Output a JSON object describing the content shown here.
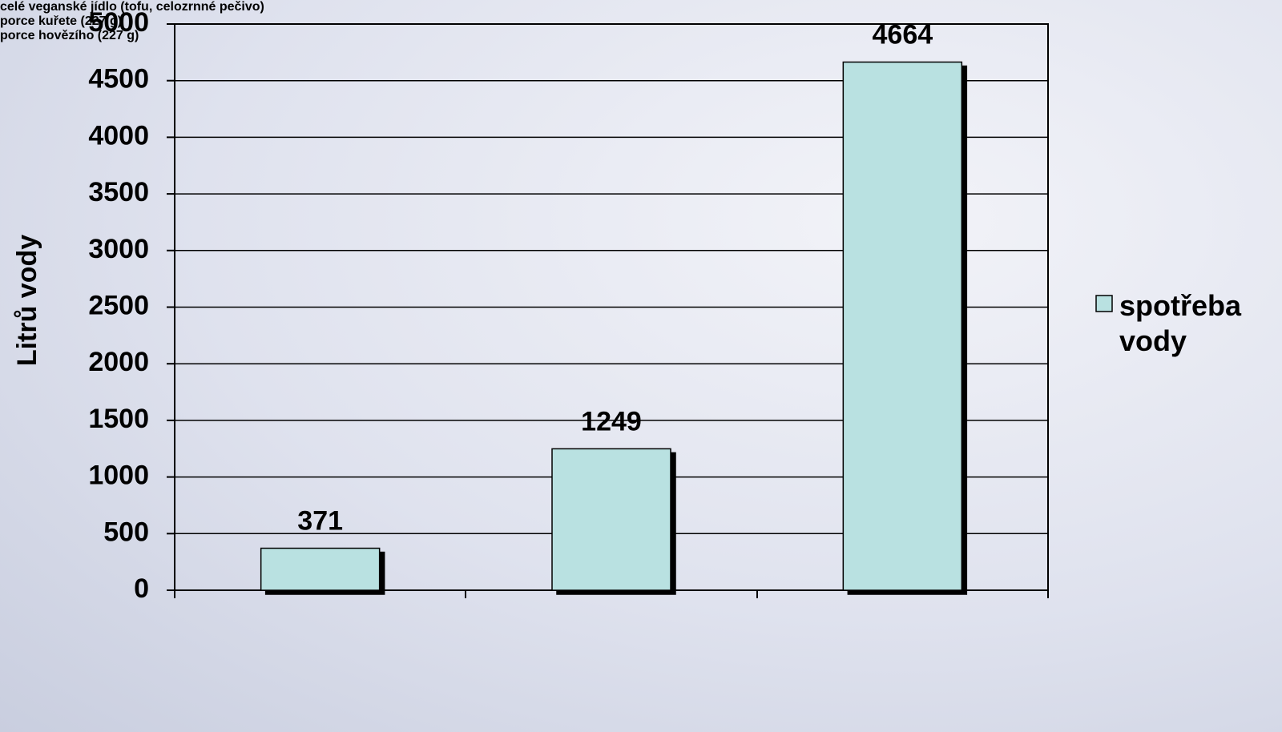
{
  "chart_data": {
    "type": "bar",
    "y_label": "Litrů vody",
    "categories": [
      "celé veganské jídlo (tofu, celozrnné pečivo)",
      "porce kuřete (227 g)",
      "porce hovězího (227 g)"
    ],
    "series": [
      {
        "name": "spotřeba vody",
        "color": "#b9e1e1",
        "values": [
          371,
          1249,
          4664
        ]
      }
    ],
    "ylim": [
      0,
      5000
    ],
    "yticks": [
      0,
      500,
      1000,
      1500,
      2000,
      2500,
      3000,
      3500,
      4000,
      4500,
      5000
    ],
    "grid": true,
    "legend": "right"
  }
}
